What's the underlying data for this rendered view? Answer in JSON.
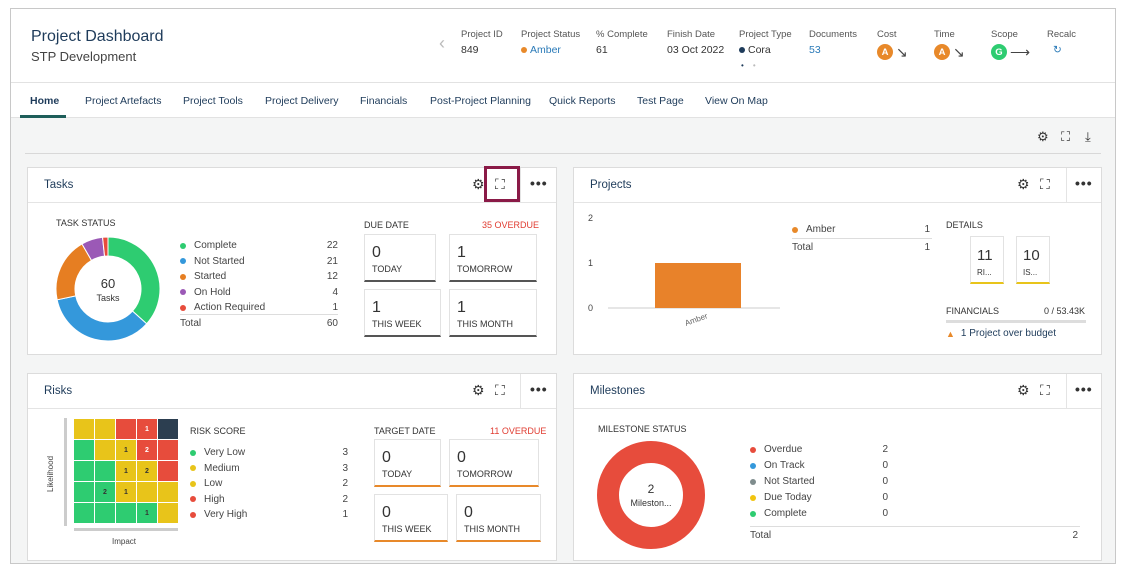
{
  "header": {
    "title": "Project Dashboard",
    "subtitle": "STP Development",
    "meta": {
      "project_id": {
        "label": "Project ID",
        "value": "849"
      },
      "project_status": {
        "label": "Project Status",
        "value": "Amber",
        "color": "#e8892a"
      },
      "complete": {
        "label": "% Complete",
        "value": "61"
      },
      "finish_date": {
        "label": "Finish Date",
        "value": "03 Oct 2022"
      },
      "project_type": {
        "label": "Project Type",
        "value": "Cora",
        "color": "#1e3b5a"
      },
      "documents": {
        "label": "Documents",
        "value": "53"
      },
      "cost": {
        "label": "Cost",
        "badge": "A",
        "color": "#e8892a",
        "trend": "↘"
      },
      "time": {
        "label": "Time",
        "badge": "A",
        "color": "#e8892a",
        "trend": "↘"
      },
      "scope": {
        "label": "Scope",
        "badge": "G",
        "color": "#2ecc71",
        "trend": "⟶"
      },
      "recalc": {
        "label": "Recalc",
        "icon": "↻"
      }
    }
  },
  "nav": [
    "Home",
    "Project Artefacts",
    "Project Tools",
    "Project Delivery",
    "Financials",
    "Post-Project Planning",
    "Quick Reports",
    "Test Page",
    "View On Map"
  ],
  "tasks": {
    "title": "Tasks",
    "status_label": "TASK STATUS",
    "center_value": "60",
    "center_label": "Tasks",
    "legend": [
      {
        "label": "Complete",
        "value": "22",
        "color": "#2ecc71"
      },
      {
        "label": "Not Started",
        "value": "21",
        "color": "#3498db"
      },
      {
        "label": "Started",
        "value": "12",
        "color": "#e67e22"
      },
      {
        "label": "On Hold",
        "value": "4",
        "color": "#9b59b6"
      },
      {
        "label": "Action Required",
        "value": "1",
        "color": "#e74c3c"
      }
    ],
    "total_label": "Total",
    "total_value": "60",
    "due_label": "DUE DATE",
    "overdue": "35 OVERDUE",
    "stats": [
      {
        "num": "0",
        "cap": "TODAY"
      },
      {
        "num": "1",
        "cap": "TOMORROW"
      },
      {
        "num": "1",
        "cap": "THIS WEEK"
      },
      {
        "num": "1",
        "cap": "THIS MONTH"
      }
    ]
  },
  "projects": {
    "title": "Projects",
    "y_ticks": [
      "2",
      "1",
      "0"
    ],
    "bar_label": "Amber",
    "bar_color": "#e8822a",
    "legend_label": "Amber",
    "legend_value": "1",
    "total_label": "Total",
    "total_value": "1",
    "details_label": "DETAILS",
    "details": [
      {
        "num": "11",
        "cap": "RI..."
      },
      {
        "num": "10",
        "cap": "IS..."
      }
    ],
    "financials_label": "FINANCIALS",
    "financials_value": "0 / 53.43K",
    "budget_warning": "1 Project over budget"
  },
  "chart_data": {
    "type": "bar",
    "title": "Projects",
    "categories": [
      "Amber"
    ],
    "values": [
      1
    ],
    "ylim": [
      0,
      2
    ],
    "yticks": [
      0,
      1,
      2
    ]
  },
  "risks": {
    "title": "Risks",
    "axis_y": "Likelihood",
    "axis_x": "Impact",
    "grid": [
      [
        {
          "c": "#e8c41a",
          "v": ""
        },
        {
          "c": "#e8c41a",
          "v": ""
        },
        {
          "c": "#e74c3c",
          "v": ""
        },
        {
          "c": "#e74c3c",
          "v": "1"
        },
        {
          "c": "#2c3e50",
          "v": ""
        }
      ],
      [
        {
          "c": "#2ecc71",
          "v": ""
        },
        {
          "c": "#e8c41a",
          "v": ""
        },
        {
          "c": "#e8c41a",
          "v": "1"
        },
        {
          "c": "#e74c3c",
          "v": "2"
        },
        {
          "c": "#e74c3c",
          "v": ""
        }
      ],
      [
        {
          "c": "#2ecc71",
          "v": ""
        },
        {
          "c": "#2ecc71",
          "v": ""
        },
        {
          "c": "#e8c41a",
          "v": "1"
        },
        {
          "c": "#e8c41a",
          "v": "2"
        },
        {
          "c": "#e74c3c",
          "v": ""
        }
      ],
      [
        {
          "c": "#2ecc71",
          "v": ""
        },
        {
          "c": "#2ecc71",
          "v": "2"
        },
        {
          "c": "#e8c41a",
          "v": "1"
        },
        {
          "c": "#e8c41a",
          "v": ""
        },
        {
          "c": "#e8c41a",
          "v": ""
        }
      ],
      [
        {
          "c": "#2ecc71",
          "v": ""
        },
        {
          "c": "#2ecc71",
          "v": ""
        },
        {
          "c": "#2ecc71",
          "v": ""
        },
        {
          "c": "#2ecc71",
          "v": "1"
        },
        {
          "c": "#e8c41a",
          "v": ""
        }
      ]
    ],
    "score_label": "RISK SCORE",
    "legend": [
      {
        "label": "Very Low",
        "value": "3",
        "color": "#2ecc71"
      },
      {
        "label": "Medium",
        "value": "3",
        "color": "#e8c41a"
      },
      {
        "label": "Low",
        "value": "2",
        "color": "#e8c41a"
      },
      {
        "label": "High",
        "value": "2",
        "color": "#e74c3c"
      },
      {
        "label": "Very High",
        "value": "1",
        "color": "#e74c3c"
      }
    ],
    "target_label": "TARGET DATE",
    "overdue": "11 OVERDUE",
    "stats": [
      {
        "num": "0",
        "cap": "TODAY"
      },
      {
        "num": "0",
        "cap": "TOMORROW"
      },
      {
        "num": "0",
        "cap": "THIS WEEK"
      },
      {
        "num": "0",
        "cap": "THIS MONTH"
      }
    ]
  },
  "milestones": {
    "title": "Milestones",
    "status_label": "MILESTONE STATUS",
    "center_value": "2",
    "center_label": "Mileston...",
    "ring_color": "#e74c3c",
    "legend": [
      {
        "label": "Overdue",
        "value": "2",
        "color": "#e74c3c"
      },
      {
        "label": "On Track",
        "value": "0",
        "color": "#3498db"
      },
      {
        "label": "Not Started",
        "value": "0",
        "color": "#7f8c8d"
      },
      {
        "label": "Due Today",
        "value": "0",
        "color": "#f1c40f"
      },
      {
        "label": "Complete",
        "value": "0",
        "color": "#2ecc71"
      }
    ],
    "total_label": "Total",
    "total_value": "2"
  },
  "icons": {
    "gear": "⚙",
    "expand": "⛶",
    "more": "•••",
    "download": "⤓",
    "chevron_left": "‹",
    "warning": "▲",
    "pager_on": "•",
    "pager_off": "•"
  }
}
